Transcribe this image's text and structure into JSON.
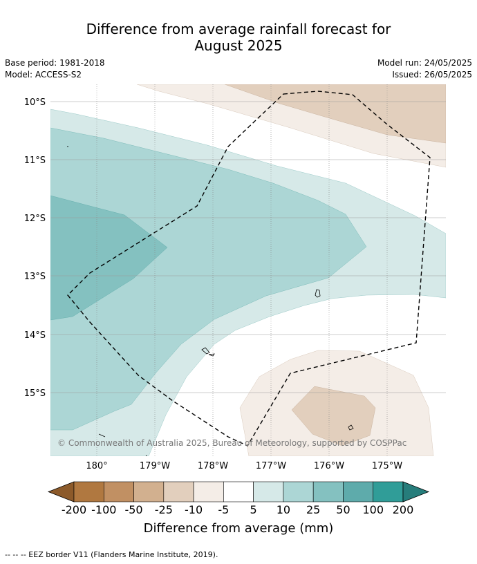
{
  "title_line1": "Difference from average rainfall forecast for",
  "title_line2": "August 2025",
  "base_period": "Base period: 1981-2018",
  "model": "Model: ACCESS-S2",
  "model_run": "Model run: 24/05/2025",
  "issued": "Issued: 26/05/2025",
  "lat_labels": [
    "10°S",
    "11°S",
    "12°S",
    "13°S",
    "14°S",
    "15°S"
  ],
  "lon_labels": [
    "180°",
    "179°W",
    "178°W",
    "177°W",
    "176°W",
    "175°W"
  ],
  "copyright": "© Commonwealth of Australia 2025, Bureau of Meteorology, supported by COSPPac",
  "legend": {
    "ticks": [
      "-200",
      "-100",
      "-50",
      "-25",
      "-10",
      "-5",
      "5",
      "10",
      "25",
      "50",
      "100",
      "200"
    ],
    "colors": [
      "#8c5a2a",
      "#b07840",
      "#c19063",
      "#d2b08f",
      "#e2cfbd",
      "#f4ede7",
      "#ffffff",
      "#d6e9e8",
      "#acd6d5",
      "#84c1c0",
      "#5eabab",
      "#309d98",
      "#267d7b"
    ],
    "label": "Difference from average (mm)"
  },
  "footnote": "--  --  -- EEZ border V11 (Flanders Marine Institute, 2019)."
}
